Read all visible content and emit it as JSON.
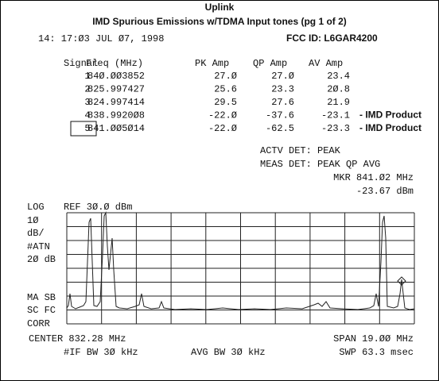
{
  "header": {
    "title": "Uplink",
    "subtitle": "IMD Spurious Emissions w/TDMA Input tones (pg 1 of 2)",
    "timestamp": "14: 17:Ø3 JUL Ø7, 1998",
    "fcc_id": "FCC ID:  L6GAR4200"
  },
  "table": {
    "columns": [
      "Signal",
      "Freq (MHz)",
      "PK Amp",
      "QP Amp",
      "AV Amp"
    ],
    "rows": [
      [
        "1",
        "84Ø.ØØ3852",
        "27.Ø",
        "27.Ø",
        "23.4"
      ],
      [
        "2",
        "825.997427",
        "25.6",
        "23.3",
        "2Ø.8"
      ],
      [
        "3",
        "824.997414",
        "29.5",
        "27.6",
        "21.9"
      ],
      [
        "4",
        "838.9920Ø8",
        "-22.Ø",
        "-37.6",
        "-23.1"
      ],
      [
        "5",
        "841.ØØ5Ø14",
        "-22.Ø",
        "-62.5",
        "-23.3"
      ]
    ],
    "annotations": {
      "3": "- IMD Product",
      "4": "- IMD Product"
    }
  },
  "detector": {
    "actv": "ACTV DET:  PEAK",
    "meas": "MEAS DET:  PEAK QP AVG",
    "marker": "MKR 841.Ø2 MHz",
    "marker_level": "-23.67 dBm"
  },
  "screen": {
    "left_labels": [
      "LOG",
      "1Ø",
      "dB/",
      "#ATN",
      "2Ø dB",
      "MA SB",
      "SC FC",
      "CORR"
    ],
    "ref": "REF 3Ø.Ø dBm"
  },
  "footer": {
    "center": "CENTER 832.28 MHz",
    "span": "SPAN 19.ØØ MHz",
    "if_bw": "#IF BW 3Ø kHz",
    "avg_bw": "AVG BW 3Ø kHz",
    "sweep": "SWP 63.3 msec"
  }
}
